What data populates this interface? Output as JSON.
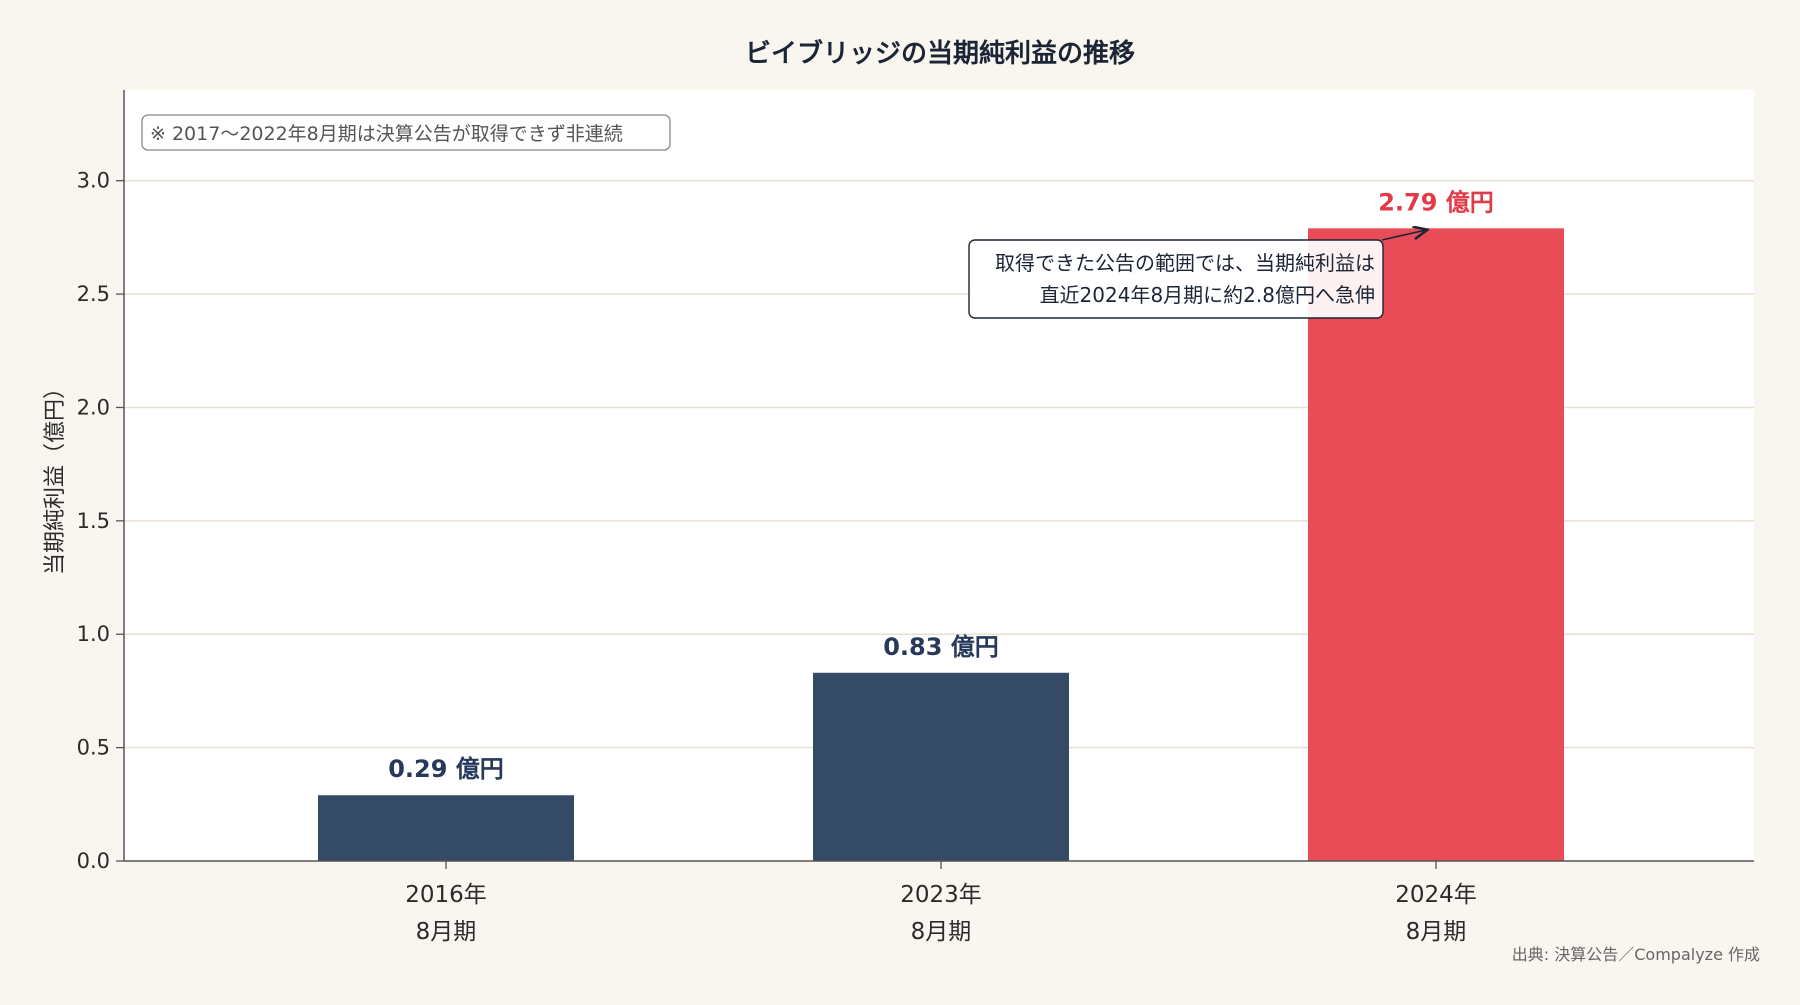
{
  "chart_data": {
    "type": "bar",
    "title": "ビイブリッジの当期純利益の推移",
    "ylabel": "当期純利益（億円）",
    "xlabel": "",
    "ylim": [
      0,
      3.4
    ],
    "yticks": [
      "0.0",
      "0.5",
      "1.0",
      "1.5",
      "2.0",
      "2.5",
      "3.0"
    ],
    "ytick_values": [
      0,
      0.5,
      1.0,
      1.5,
      2.0,
      2.5,
      3.0
    ],
    "grid": true,
    "categories": [
      {
        "line1": "2016年",
        "line2": "8月期"
      },
      {
        "line1": "2023年",
        "line2": "8月期"
      },
      {
        "line1": "2024年",
        "line2": "8月期"
      }
    ],
    "values": [
      0.29,
      0.83,
      2.79
    ],
    "value_labels": [
      "0.29 億円",
      "0.83 億円",
      "2.79 億円"
    ],
    "bar_colors": [
      "#344a66",
      "#344a66",
      "#e84c57"
    ],
    "label_colors": [
      "#27395a",
      "#27395a",
      "#e23b48"
    ],
    "note": "※ 2017〜2022年8月期は決算公告が取得できず非連続",
    "annotation": {
      "line1": "取得できた公告の範囲では、当期純利益は",
      "line2": "直近2024年8月期に約2.8億円へ急伸"
    },
    "source": "出典: 決算公告／Compalyze 作成"
  }
}
